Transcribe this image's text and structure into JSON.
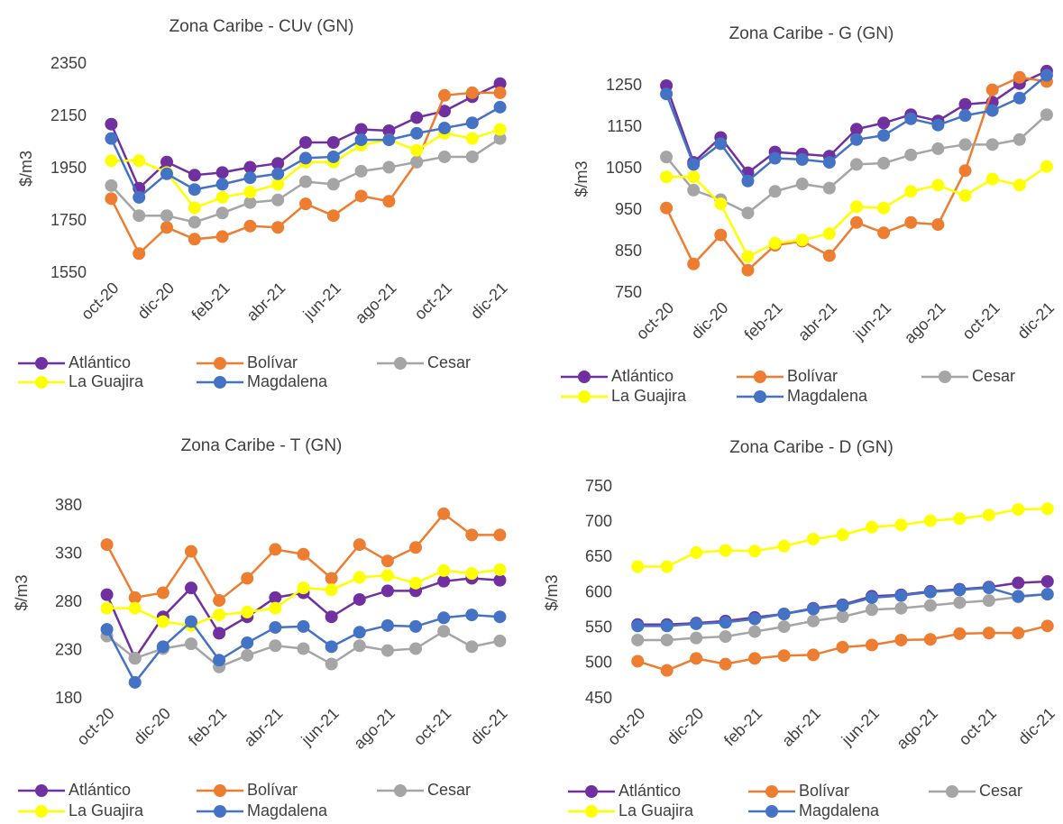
{
  "chart_data": [
    {
      "type": "line",
      "title": "Zona Caribe - CUv (GN)",
      "y_label": "$/m3",
      "categories": [
        "oct-20",
        null,
        "dic-20",
        null,
        "feb-21",
        null,
        "abr-21",
        null,
        "jun-21",
        null,
        "ago-21",
        null,
        "oct-21",
        null,
        "dic-21"
      ],
      "ylim": [
        1550,
        2350
      ],
      "yticks": [
        1550,
        1750,
        1950,
        2150,
        2350
      ],
      "series": [
        {
          "name": "Atlántico",
          "color": "#7030a0",
          "values": [
            2120,
            1875,
            1975,
            1925,
            1935,
            1955,
            1970,
            2050,
            2050,
            2100,
            2095,
            2145,
            2170,
            2225,
            2275
          ]
        },
        {
          "name": "Bolívar",
          "color": "#ed7d31",
          "values": [
            1835,
            1625,
            1725,
            1680,
            1690,
            1730,
            1725,
            1815,
            1770,
            1845,
            1825,
            1975,
            2230,
            2240,
            2240
          ]
        },
        {
          "name": "Cesar",
          "color": "#a5a5a5",
          "values": [
            1885,
            1770,
            1770,
            1745,
            1780,
            1820,
            1830,
            1900,
            1890,
            1940,
            1955,
            1975,
            1995,
            1995,
            2065
          ]
        },
        {
          "name": "La Guajira",
          "color": "#ffff00",
          "values": [
            1980,
            1980,
            1935,
            1800,
            1840,
            1860,
            1890,
            1975,
            1975,
            2040,
            2060,
            2020,
            2085,
            2065,
            2100
          ]
        },
        {
          "name": "Magdalena",
          "color": "#4472c4",
          "values": [
            2065,
            1840,
            1930,
            1870,
            1890,
            1915,
            1930,
            1990,
            1995,
            2060,
            2060,
            2085,
            2105,
            2125,
            2185
          ]
        }
      ]
    },
    {
      "type": "line",
      "title": "Zona Caribe - G (GN)",
      "y_label": "$/m3",
      "categories": [
        "oct-20",
        null,
        "dic-20",
        null,
        "feb-21",
        null,
        "abr-21",
        null,
        "jun-21",
        null,
        "ago-21",
        null,
        "oct-21",
        null,
        "dic-21"
      ],
      "ylim": [
        750,
        1300
      ],
      "yticks": [
        750,
        850,
        950,
        1050,
        1150,
        1250
      ],
      "series": [
        {
          "name": "Atlántico",
          "color": "#7030a0",
          "values": [
            1250,
            1065,
            1125,
            1040,
            1090,
            1085,
            1080,
            1145,
            1160,
            1180,
            1165,
            1205,
            1210,
            1255,
            1285
          ]
        },
        {
          "name": "Bolívar",
          "color": "#ed7d31",
          "values": [
            955,
            820,
            890,
            805,
            865,
            875,
            840,
            920,
            895,
            920,
            915,
            1045,
            1240,
            1270,
            1260
          ]
        },
        {
          "name": "Cesar",
          "color": "#a5a5a5",
          "values": [
            1078,
            998,
            975,
            943,
            995,
            1013,
            1003,
            1060,
            1063,
            1083,
            1098,
            1108,
            1108,
            1120,
            1180
          ]
        },
        {
          "name": "La Guajira",
          "color": "#ffff00",
          "values": [
            1030,
            1030,
            965,
            838,
            870,
            878,
            893,
            958,
            955,
            995,
            1010,
            985,
            1025,
            1010,
            1055
          ]
        },
        {
          "name": "Magdalena",
          "color": "#4472c4",
          "values": [
            1230,
            1060,
            1110,
            1020,
            1075,
            1072,
            1065,
            1120,
            1130,
            1170,
            1155,
            1178,
            1190,
            1220,
            1275
          ]
        }
      ]
    },
    {
      "type": "line",
      "title": "Zona Caribe - T (GN)",
      "y_label": "$/m3",
      "categories": [
        "oct-20",
        null,
        "dic-20",
        null,
        "feb-21",
        null,
        "abr-21",
        null,
        "jun-21",
        null,
        "ago-21",
        null,
        "oct-21",
        null,
        "dic-21"
      ],
      "ylim": [
        180,
        400
      ],
      "yticks": [
        180,
        230,
        280,
        330,
        380
      ],
      "series": [
        {
          "name": "Atlántico",
          "color": "#7030a0",
          "values": [
            288,
            222,
            265,
            295,
            248,
            265,
            285,
            290,
            265,
            283,
            292,
            292,
            302,
            305,
            303
          ]
        },
        {
          "name": "Bolívar",
          "color": "#ed7d31",
          "values": [
            340,
            285,
            290,
            333,
            282,
            305,
            335,
            330,
            305,
            340,
            323,
            337,
            372,
            350,
            350
          ]
        },
        {
          "name": "Cesar",
          "color": "#a5a5a5",
          "values": [
            245,
            222,
            232,
            237,
            213,
            225,
            235,
            232,
            216,
            235,
            230,
            232,
            250,
            234,
            240
          ]
        },
        {
          "name": "La Guajira",
          "color": "#ffff00",
          "values": [
            274,
            274,
            260,
            256,
            267,
            270,
            274,
            295,
            293,
            306,
            308,
            300,
            313,
            310,
            314
          ]
        },
        {
          "name": "Magdalena",
          "color": "#4472c4",
          "values": [
            252,
            197,
            234,
            260,
            220,
            238,
            254,
            255,
            234,
            249,
            256,
            255,
            264,
            267,
            265
          ]
        }
      ]
    },
    {
      "type": "line",
      "title": "Zona Caribe - D (GN)",
      "y_label": "$/m3",
      "categories": [
        "oct-20",
        null,
        "dic-20",
        null,
        "feb-21",
        null,
        "abr-21",
        null,
        "jun-21",
        null,
        "ago-21",
        null,
        "oct-21",
        null,
        "dic-21"
      ],
      "ylim": [
        450,
        750
      ],
      "yticks": [
        450,
        500,
        550,
        600,
        650,
        700,
        750
      ],
      "series": [
        {
          "name": "Atlántico",
          "color": "#7030a0",
          "values": [
            555,
            555,
            557,
            560,
            565,
            570,
            578,
            583,
            595,
            597,
            602,
            605,
            608,
            614,
            616
          ]
        },
        {
          "name": "Bolívar",
          "color": "#ed7d31",
          "values": [
            503,
            490,
            507,
            499,
            507,
            511,
            512,
            523,
            526,
            533,
            534,
            542,
            543,
            543,
            553
          ]
        },
        {
          "name": "Cesar",
          "color": "#a5a5a5",
          "values": [
            533,
            533,
            536,
            538,
            545,
            552,
            560,
            566,
            576,
            578,
            582,
            586,
            589,
            594,
            598
          ]
        },
        {
          "name": "La Guajira",
          "color": "#ffff00",
          "values": [
            637,
            637,
            657,
            660,
            659,
            666,
            676,
            682,
            693,
            696,
            702,
            705,
            710,
            718,
            719
          ]
        },
        {
          "name": "Magdalena",
          "color": "#4472c4",
          "values": [
            553,
            553,
            556,
            558,
            563,
            570,
            577,
            582,
            593,
            596,
            601,
            604,
            607,
            595,
            598
          ]
        }
      ]
    }
  ]
}
